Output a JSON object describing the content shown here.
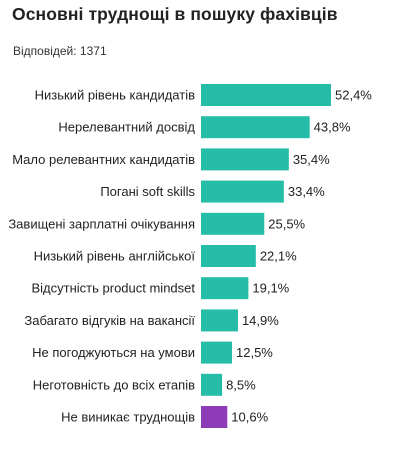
{
  "title": "Основні труднощі в пошуку фахівців",
  "subtitle": "Відповідей: 1371",
  "colors": {
    "primary": "#26BDA8",
    "highlight": "#8E3BB8"
  },
  "chart_data": {
    "type": "bar",
    "orientation": "horizontal",
    "categories": [
      "Низький рівень кандидатів",
      "Нерелевантний досвід",
      "Мало релевантних кандидатів",
      "Погані soft skills",
      "Завищені зарплатні очікування",
      "Низький рівень англійської",
      "Відсутність product mindset",
      "Забагато відгуків на вакансії",
      "Не погоджуються на умови",
      "Неготовність до всіх етапів",
      "Не виникає труднощів"
    ],
    "values": [
      52.4,
      43.8,
      35.4,
      33.4,
      25.5,
      22.1,
      19.1,
      14.9,
      12.5,
      8.5,
      10.6
    ],
    "value_labels": [
      "52,4%",
      "43,8%",
      "35,4%",
      "33,4%",
      "25,5%",
      "22,1%",
      "19,1%",
      "14,9%",
      "12,5%",
      "8,5%",
      "10,6%"
    ],
    "highlighted": [
      false,
      false,
      false,
      false,
      false,
      false,
      false,
      false,
      false,
      false,
      true
    ],
    "xlim": [
      0,
      52.4
    ],
    "grid": false,
    "legend": "none"
  }
}
